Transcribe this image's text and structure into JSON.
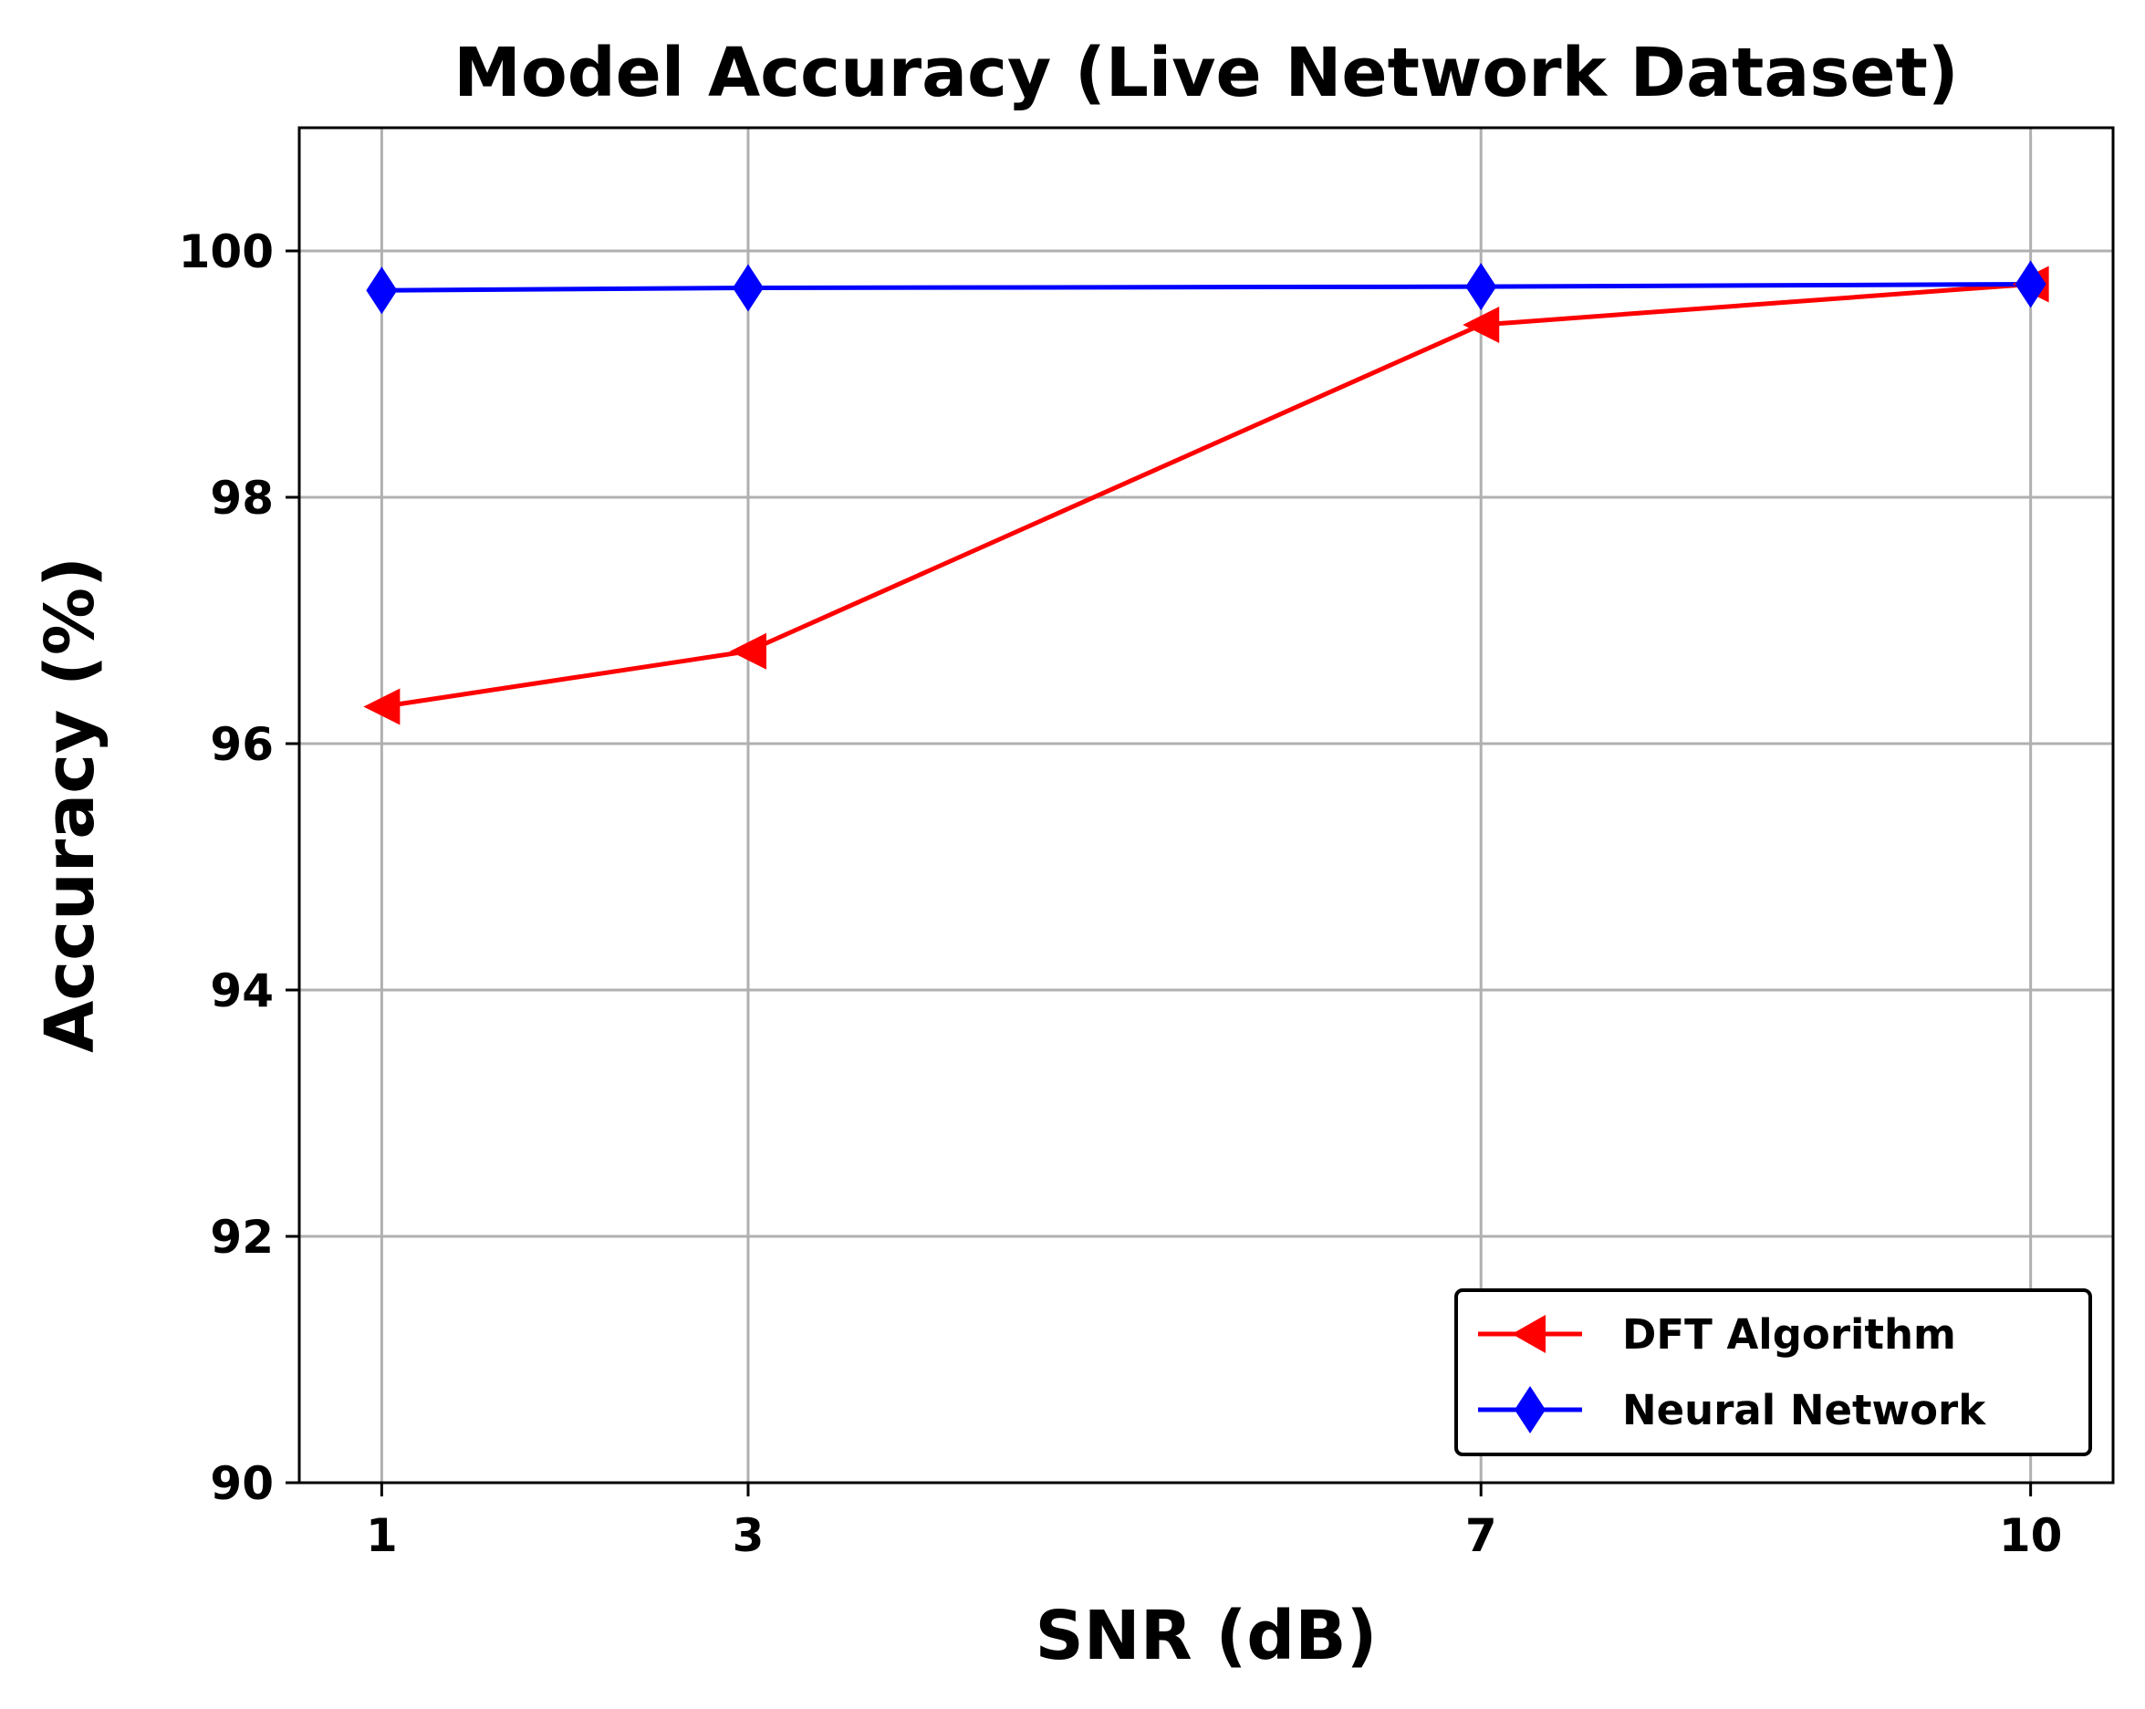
{
  "chart_data": {
    "type": "line",
    "title": "Model Accuracy (Live Network Dataset)",
    "xlabel": "SNR (dB)",
    "ylabel": "Accuracy (%)",
    "x": [
      1,
      3,
      7,
      10
    ],
    "x_tick_labels": [
      "1",
      "3",
      "7",
      "10"
    ],
    "y_ticks": [
      90,
      92,
      94,
      96,
      98,
      100
    ],
    "y_tick_labels": [
      "90",
      "92",
      "94",
      "96",
      "98",
      "100"
    ],
    "xlim": [
      0.55,
      10.45
    ],
    "ylim": [
      90,
      101
    ],
    "grid": true,
    "legend_position": "lower-right",
    "series": [
      {
        "name": "DFT Algorithm",
        "values": [
          96.3,
          96.75,
          99.4,
          99.73
        ],
        "color": "#ff0000",
        "marker": "triangle-left"
      },
      {
        "name": "Neural Network",
        "values": [
          99.68,
          99.7,
          99.71,
          99.73
        ],
        "color": "#0000ff",
        "marker": "thin-diamond"
      }
    ]
  }
}
